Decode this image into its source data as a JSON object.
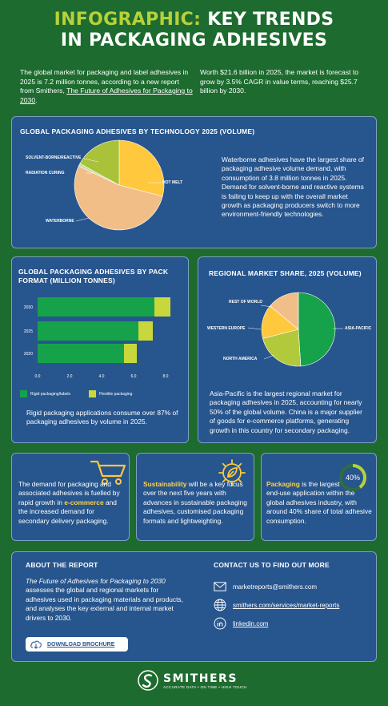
{
  "header": {
    "title_accent": "INFOGRAPHIC:",
    "title_rest": "KEY TRENDS",
    "title_line2": "IN PACKAGING ADHESIVES",
    "intro_left": "The global market for packaging and label adhesives in 2025 is 7.2 million tonnes, according to a new report from Smithers,",
    "intro_left_link": "The Future of Adhesives for Packaging to 2030",
    "intro_left_end": ".",
    "intro_right": "Worth $21.6 billion in 2025, the market is forecast to grow by 3.5% CAGR in value terms, reaching $25.7 billion by 2030."
  },
  "tech_card": {
    "title": "GLOBAL PACKAGING ADHESIVES BY TECHNOLOGY 2025 (VOLUME)",
    "text": "Waterborne adhesives have the largest share of packaging adhesive volume demand, with consumption of 3.8 million tonnes in 2025. Demand for solvent-borne and reactive systems is failing to keep up with the overall market growth as packaging producers switch to more environment-friendly technologies.",
    "labels": {
      "solvent": "SOLVENT-BORNE/REACTIVE",
      "radiation": "RADIATION CURING",
      "hotmelt": "HOT MELT",
      "waterborne": "WATERBORNE"
    }
  },
  "pack_card": {
    "title_line1": "GLOBAL PACKAGING ADHESIVES BY PACK",
    "title_line2": "FORMAT (MILLION TONNES)",
    "text": "Rigid packaging applications consume over 87% of packaging adhesives by volume in 2025.",
    "legend_rigid": "Rigid packaging/labels",
    "legend_flexible": "Flexible packaging"
  },
  "region_card": {
    "title": "REGIONAL MARKET SHARE, 2025 (VOLUME)",
    "text": "Asia-Pacific is the largest regional market for packaging adhesives in 2025, accounting for nearly 50% of the global volume. China is a major supplier of goods for e-commerce platforms, generating growth in this country for secondary packaging.",
    "labels": {
      "row": "REST OF WORLD",
      "we": "WESTERN EUROPE",
      "na": "NORTH AMERICA",
      "apac": "ASIA-PACIFIC"
    }
  },
  "chart_data": [
    {
      "type": "pie",
      "title": "GLOBAL PACKAGING ADHESIVES BY TECHNOLOGY 2025 (VOLUME)",
      "labels": [
        "HOT MELT",
        "WATERBORNE",
        "RADIATION CURING",
        "SOLVENT-BORNE/REACTIVE"
      ],
      "values": [
        29,
        53,
        1,
        17
      ],
      "colors": [
        "#ffc83d",
        "#f2be88",
        "#c8dca0",
        "#a9c23a"
      ]
    },
    {
      "type": "bar",
      "orientation": "horizontal",
      "stacked": true,
      "title": "GLOBAL PACKAGING ADHESIVES BY PACK FORMAT (MILLION TONNES)",
      "categories": [
        "2030",
        "2025",
        "2020"
      ],
      "series": [
        {
          "name": "Rigid packaging/labels",
          "values": [
            7.3,
            6.3,
            5.4
          ],
          "color": "#16a24a"
        },
        {
          "name": "Flexible packaging",
          "values": [
            1.0,
            0.9,
            0.8
          ],
          "color": "#c8d83c"
        }
      ],
      "xticks": [
        "0.0",
        "2.0",
        "4.0",
        "6.0",
        "8.0"
      ],
      "xlim": [
        0,
        8
      ]
    },
    {
      "type": "pie",
      "title": "REGIONAL MARKET SHARE, 2025 (VOLUME)",
      "labels": [
        "ASIA-PACIFIC",
        "NORTH AMERICA",
        "WESTERN EUROPE",
        "REST OF WORLD"
      ],
      "values": [
        49,
        22,
        15,
        14
      ],
      "colors": [
        "#16a24a",
        "#b3c93c",
        "#ffc83d",
        "#f2be88"
      ]
    }
  ],
  "info_boxes": {
    "ecommerce": {
      "before": "The demand for packaging and associated adhesives is fuelled by rapid growth in",
      "highlight": "e-commerce",
      "after": "and the increased demand for secondary delivery packaging."
    },
    "sustainability": {
      "highlight": "Sustainability",
      "after": "will be a key focus over the next five years with advances in sustainable packaging adhesives, customised packaging formats and lightweighting."
    },
    "packaging": {
      "highlight": "Packaging",
      "after1": "is the largest",
      "after2": "end-use application within the global adhesives industry, with around 40% share of total adhesive consumption.",
      "badge": "40%"
    }
  },
  "about": {
    "title": "ABOUT THE REPORT",
    "report_title": "The Future of Adhesives for Packaging to 2030",
    "text": "assesses the global and regional markets for adhesives used in packaging materials and products, and analyses the key external and internal market drivers to 2030.",
    "button": "DOWNLOAD BROCHURE"
  },
  "contact": {
    "title": "CONTACT US TO FIND OUT MORE",
    "email": "marketreports@smithers.com",
    "web": "smithers.com/services/market-reports",
    "linkedin": "linkedin.com"
  },
  "footer": {
    "brand": "SMITHERS",
    "tagline": "ACCURATE DATA • ON TIME • HIGH TOUCH"
  },
  "colors": {
    "background": "#1d6b2e",
    "card": "#27558d",
    "accent_green": "#b7d13a",
    "accent_yellow": "#ffd24a"
  }
}
